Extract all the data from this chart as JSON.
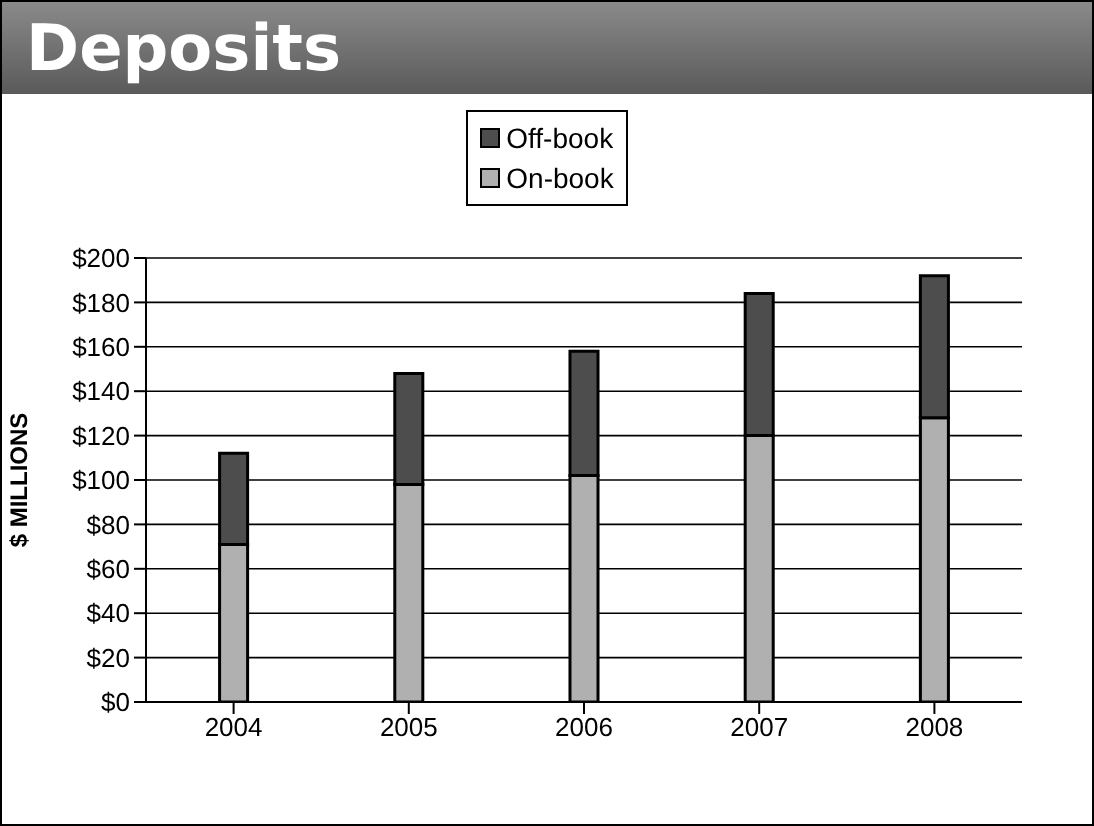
{
  "chart_data": {
    "type": "bar",
    "title": "Deposits",
    "ylabel": "$ MILLIONS",
    "categories": [
      "2004",
      "2005",
      "2006",
      "2007",
      "2008"
    ],
    "stacked": true,
    "series": [
      {
        "name": "On-book",
        "color": "#b0b0b0",
        "values": [
          71,
          98,
          102,
          120,
          128
        ]
      },
      {
        "name": "Off-book",
        "color": "#4d4d4d",
        "values": [
          41,
          50,
          56,
          64,
          64
        ]
      }
    ],
    "ylim": [
      0,
      200
    ],
    "yticks": [
      {
        "value": 0,
        "label": "$0"
      },
      {
        "value": 20,
        "label": "$20"
      },
      {
        "value": 40,
        "label": "$40"
      },
      {
        "value": 60,
        "label": "$60"
      },
      {
        "value": 80,
        "label": "$80"
      },
      {
        "value": 100,
        "label": "$100"
      },
      {
        "value": 120,
        "label": "$120"
      },
      {
        "value": 140,
        "label": "$140"
      },
      {
        "value": 160,
        "label": "$160"
      },
      {
        "value": 180,
        "label": "$180"
      },
      {
        "value": 200,
        "label": "$200"
      }
    ],
    "grid": "y",
    "legend": "top"
  }
}
